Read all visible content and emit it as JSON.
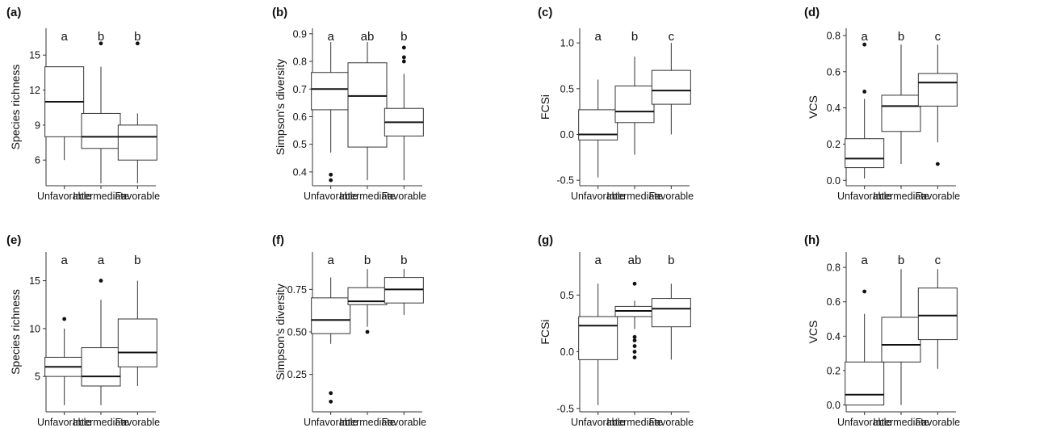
{
  "chart_data": [
    {
      "type": "boxplot",
      "panel": "(a)",
      "ylabel": "Species richness",
      "ylim": [
        3.8,
        17.3
      ],
      "yticks": [
        6,
        9,
        12,
        15
      ],
      "categories": [
        "Unfavorable",
        "Intermediate",
        "Favorable"
      ],
      "letters": [
        "a",
        "b",
        "b"
      ],
      "boxes": [
        {
          "whisker_low": 6,
          "q1": 8,
          "median": 11,
          "q3": 14,
          "whisker_high": 14,
          "outliers": []
        },
        {
          "whisker_low": 4,
          "q1": 7,
          "median": 8,
          "q3": 10,
          "whisker_high": 14,
          "outliers": [
            16
          ]
        },
        {
          "whisker_low": 4,
          "q1": 6,
          "median": 8,
          "q3": 9,
          "whisker_high": 10,
          "outliers": [
            16
          ]
        }
      ]
    },
    {
      "type": "boxplot",
      "panel": "(b)",
      "ylabel": "Simpson's diversity",
      "ylim": [
        0.35,
        0.92
      ],
      "yticks": [
        0.4,
        0.5,
        0.6,
        0.7,
        0.8,
        0.9
      ],
      "categories": [
        "Unfavorable",
        "Intermediate",
        "Favorable"
      ],
      "letters": [
        "a",
        "ab",
        "b"
      ],
      "boxes": [
        {
          "whisker_low": 0.47,
          "q1": 0.625,
          "median": 0.7,
          "q3": 0.76,
          "whisker_high": 0.87,
          "outliers": [
            0.37,
            0.39
          ]
        },
        {
          "whisker_low": 0.37,
          "q1": 0.49,
          "median": 0.675,
          "q3": 0.795,
          "whisker_high": 0.87,
          "outliers": []
        },
        {
          "whisker_low": 0.37,
          "q1": 0.53,
          "median": 0.58,
          "q3": 0.63,
          "whisker_high": 0.755,
          "outliers": [
            0.8,
            0.815,
            0.85
          ]
        }
      ]
    },
    {
      "type": "boxplot",
      "panel": "(c)",
      "ylabel": "FCSi",
      "ylim": [
        -0.56,
        1.16
      ],
      "yticks": [
        -0.5,
        0.0,
        0.5,
        1.0
      ],
      "tick_labels": [
        "-0.5",
        "0.0",
        "0.5",
        "1.0"
      ],
      "categories": [
        "Unfavorable",
        "Intermediate",
        "Favorable"
      ],
      "letters": [
        "a",
        "b",
        "c"
      ],
      "boxes": [
        {
          "whisker_low": -0.47,
          "q1": -0.06,
          "median": 0.0,
          "q3": 0.27,
          "whisker_high": 0.6,
          "outliers": []
        },
        {
          "whisker_low": -0.22,
          "q1": 0.13,
          "median": 0.25,
          "q3": 0.53,
          "whisker_high": 0.85,
          "outliers": []
        },
        {
          "whisker_low": 0.0,
          "q1": 0.33,
          "median": 0.48,
          "q3": 0.7,
          "whisker_high": 1.0,
          "outliers": []
        }
      ]
    },
    {
      "type": "boxplot",
      "panel": "(d)",
      "ylabel": "VCS",
      "ylim": [
        -0.03,
        0.84
      ],
      "yticks": [
        0.0,
        0.2,
        0.4,
        0.6,
        0.8
      ],
      "tick_labels": [
        "0.0",
        "0.2",
        "0.4",
        "0.6",
        "0.8"
      ],
      "categories": [
        "Unfavorable",
        "Intermediate",
        "Favorable"
      ],
      "letters": [
        "a",
        "b",
        "c"
      ],
      "boxes": [
        {
          "whisker_low": 0.01,
          "q1": 0.07,
          "median": 0.12,
          "q3": 0.23,
          "whisker_high": 0.45,
          "outliers": [
            0.49,
            0.75
          ]
        },
        {
          "whisker_low": 0.09,
          "q1": 0.27,
          "median": 0.41,
          "q3": 0.47,
          "whisker_high": 0.75,
          "outliers": []
        },
        {
          "whisker_low": 0.21,
          "q1": 0.41,
          "median": 0.54,
          "q3": 0.59,
          "whisker_high": 0.75,
          "outliers": [
            0.09
          ]
        }
      ]
    },
    {
      "type": "boxplot",
      "panel": "(e)",
      "ylabel": "Species richness",
      "ylim": [
        1.3,
        18.0
      ],
      "yticks": [
        5,
        10,
        15
      ],
      "categories": [
        "Unfavorable",
        "Intermediate",
        "Favorable"
      ],
      "letters": [
        "a",
        "a",
        "b"
      ],
      "boxes": [
        {
          "whisker_low": 2,
          "q1": 5,
          "median": 6,
          "q3": 7,
          "whisker_high": 10,
          "outliers": [
            11
          ]
        },
        {
          "whisker_low": 2,
          "q1": 4,
          "median": 5,
          "q3": 8,
          "whisker_high": 13,
          "outliers": [
            15
          ]
        },
        {
          "whisker_low": 4,
          "q1": 6,
          "median": 7.5,
          "q3": 11,
          "whisker_high": 15,
          "outliers": []
        }
      ]
    },
    {
      "type": "boxplot",
      "panel": "(f)",
      "ylabel": "Simpson's diversity",
      "ylim": [
        0.03,
        0.97
      ],
      "yticks": [
        0.25,
        0.5,
        0.75
      ],
      "tick_labels": [
        "0.25",
        "0.50",
        "0.75"
      ],
      "categories": [
        "Unfavorable",
        "Intermediate",
        "Favorable"
      ],
      "letters": [
        "a",
        "b",
        "b"
      ],
      "boxes": [
        {
          "whisker_low": 0.43,
          "q1": 0.49,
          "median": 0.57,
          "q3": 0.7,
          "whisker_high": 0.82,
          "outliers": [
            0.09,
            0.14
          ]
        },
        {
          "whisker_low": 0.53,
          "q1": 0.66,
          "median": 0.68,
          "q3": 0.76,
          "whisker_high": 0.87,
          "outliers": [
            0.5
          ]
        },
        {
          "whisker_low": 0.6,
          "q1": 0.67,
          "median": 0.75,
          "q3": 0.82,
          "whisker_high": 0.87,
          "outliers": []
        }
      ]
    },
    {
      "type": "boxplot",
      "panel": "(g)",
      "ylabel": "FCSi",
      "ylim": [
        -0.53,
        0.88
      ],
      "yticks": [
        -0.5,
        0.0,
        0.5
      ],
      "tick_labels": [
        "-0.5",
        "0.0",
        "0.5"
      ],
      "categories": [
        "Unfavorable",
        "Intermediate",
        "Favorable"
      ],
      "letters": [
        "a",
        "ab",
        "b"
      ],
      "boxes": [
        {
          "whisker_low": -0.47,
          "q1": -0.07,
          "median": 0.23,
          "q3": 0.31,
          "whisker_high": 0.6,
          "outliers": []
        },
        {
          "whisker_low": 0.2,
          "q1": 0.31,
          "median": 0.36,
          "q3": 0.4,
          "whisker_high": 0.45,
          "outliers": [
            0.6,
            -0.05,
            0.0,
            0.05,
            0.1,
            0.13
          ]
        },
        {
          "whisker_low": -0.07,
          "q1": 0.22,
          "median": 0.38,
          "q3": 0.47,
          "whisker_high": 0.6,
          "outliers": []
        }
      ]
    },
    {
      "type": "boxplot",
      "panel": "(h)",
      "ylabel": "VCS",
      "ylim": [
        -0.04,
        0.89
      ],
      "yticks": [
        0.0,
        0.2,
        0.4,
        0.6,
        0.8
      ],
      "tick_labels": [
        "0.0",
        "0.2",
        "0.4",
        "0.6",
        "0.8"
      ],
      "categories": [
        "Unfavorable",
        "Intermediate",
        "Favorable"
      ],
      "letters": [
        "a",
        "b",
        "c"
      ],
      "boxes": [
        {
          "whisker_low": 0.0,
          "q1": 0.0,
          "median": 0.06,
          "q3": 0.25,
          "whisker_high": 0.53,
          "outliers": [
            0.66
          ]
        },
        {
          "whisker_low": 0.0,
          "q1": 0.25,
          "median": 0.35,
          "q3": 0.51,
          "whisker_high": 0.79,
          "outliers": []
        },
        {
          "whisker_low": 0.21,
          "q1": 0.38,
          "median": 0.52,
          "q3": 0.68,
          "whisker_high": 0.79,
          "outliers": []
        }
      ]
    }
  ]
}
